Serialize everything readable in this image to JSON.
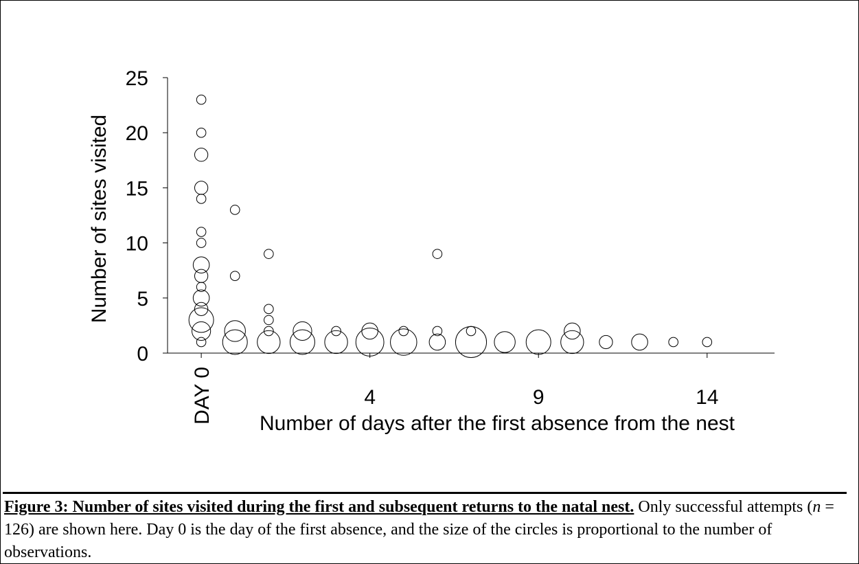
{
  "chart_data": {
    "type": "scatter",
    "xlabel": "Number of days after the first absence from the nest",
    "ylabel": "Number of sites visited",
    "xlim": [
      -2,
      16
    ],
    "ylim": [
      0,
      25
    ],
    "x_ticks": [
      {
        "value": -1,
        "label": "DAY 0",
        "rotated": true
      },
      {
        "value": 4,
        "label": "4"
      },
      {
        "value": 9,
        "label": "9"
      },
      {
        "value": 14,
        "label": "14"
      }
    ],
    "y_ticks": [
      0,
      5,
      10,
      15,
      20,
      25
    ],
    "grid": false,
    "legend": "none",
    "marker": "open circle, area proportional to number of observations",
    "points": [
      {
        "x": -1,
        "y": 23,
        "size": 1
      },
      {
        "x": -1,
        "y": 20,
        "size": 1
      },
      {
        "x": -1,
        "y": 18,
        "size": 2
      },
      {
        "x": -1,
        "y": 15,
        "size": 2
      },
      {
        "x": -1,
        "y": 14,
        "size": 1
      },
      {
        "x": -1,
        "y": 11,
        "size": 1
      },
      {
        "x": -1,
        "y": 10,
        "size": 1
      },
      {
        "x": -1,
        "y": 8,
        "size": 3
      },
      {
        "x": -1,
        "y": 7,
        "size": 2
      },
      {
        "x": -1,
        "y": 6,
        "size": 1
      },
      {
        "x": -1,
        "y": 5,
        "size": 3
      },
      {
        "x": -1,
        "y": 4,
        "size": 2
      },
      {
        "x": -1,
        "y": 3,
        "size": 7
      },
      {
        "x": -1,
        "y": 2,
        "size": 4
      },
      {
        "x": -1,
        "y": 1,
        "size": 1
      },
      {
        "x": 0,
        "y": 13,
        "size": 1
      },
      {
        "x": 0,
        "y": 7,
        "size": 1
      },
      {
        "x": 0,
        "y": 2,
        "size": 5
      },
      {
        "x": 0,
        "y": 1,
        "size": 7
      },
      {
        "x": 1,
        "y": 9,
        "size": 1
      },
      {
        "x": 1,
        "y": 4,
        "size": 1
      },
      {
        "x": 1,
        "y": 3,
        "size": 1
      },
      {
        "x": 1,
        "y": 2,
        "size": 1
      },
      {
        "x": 1,
        "y": 1,
        "size": 6
      },
      {
        "x": 2,
        "y": 2,
        "size": 4
      },
      {
        "x": 2,
        "y": 1,
        "size": 7
      },
      {
        "x": 3,
        "y": 2,
        "size": 1
      },
      {
        "x": 3,
        "y": 1,
        "size": 6
      },
      {
        "x": 4,
        "y": 2,
        "size": 3
      },
      {
        "x": 4,
        "y": 1,
        "size": 9
      },
      {
        "x": 5,
        "y": 2,
        "size": 1
      },
      {
        "x": 5,
        "y": 1,
        "size": 8
      },
      {
        "x": 6,
        "y": 9,
        "size": 1
      },
      {
        "x": 6,
        "y": 2,
        "size": 1
      },
      {
        "x": 6,
        "y": 1,
        "size": 3
      },
      {
        "x": 7,
        "y": 2,
        "size": 1
      },
      {
        "x": 7,
        "y": 1,
        "size": 11
      },
      {
        "x": 8,
        "y": 1,
        "size": 5
      },
      {
        "x": 9,
        "y": 1,
        "size": 7
      },
      {
        "x": 10,
        "y": 2,
        "size": 3
      },
      {
        "x": 10,
        "y": 1,
        "size": 6
      },
      {
        "x": 11,
        "y": 1,
        "size": 2
      },
      {
        "x": 12,
        "y": 1,
        "size": 3
      },
      {
        "x": 13,
        "y": 1,
        "size": 1
      },
      {
        "x": 14,
        "y": 1,
        "size": 1
      }
    ]
  },
  "caption": {
    "heading": "Figure 3:  Number of sites visited during the first and subsequent returns to the natal nest.",
    "text_before_n": " Only successful attempts (",
    "n_symbol": "n",
    "text_after_n": " = 126) are shown here. Day 0 is the day of the first absence, and the size of the circles is proportional to the number of observations."
  }
}
